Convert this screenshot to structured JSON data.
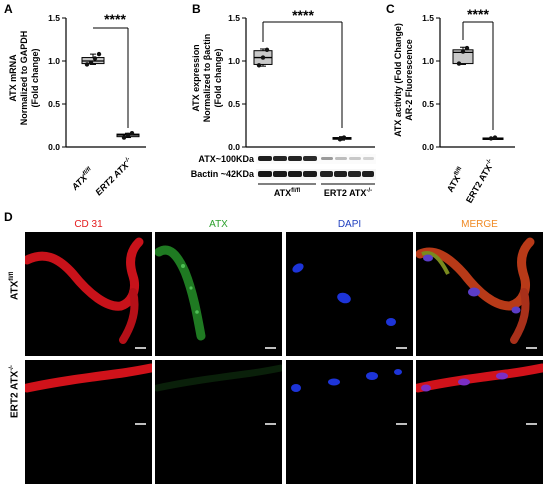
{
  "panels": {
    "A": {
      "letter": "A",
      "ylabel_line1": "ATX mRNA",
      "ylabel_line2": "Normalized to GAPDH",
      "ylabel_line3": "(Fold change)",
      "yticks": [
        "0.0",
        "0.5",
        "1.0",
        "1.5"
      ],
      "group1_main": "ATX",
      "group1_sup": "fl/fl",
      "group2_main": "ERT2 ATX",
      "group2_sup": "-/-",
      "significance": "****"
    },
    "B": {
      "letter": "B",
      "ylabel_line1": "ATX expression",
      "ylabel_line2": "Normalized to βactin",
      "ylabel_line3": "(Fold change)",
      "yticks": [
        "0.0",
        "0.5",
        "1.0",
        "1.5"
      ],
      "significance": "****",
      "blot_atx": "ATX~100KDa",
      "blot_bactin": "Bactin ~42KDa",
      "group1_main": "ATX",
      "group1_sup": "fl/fl",
      "group2_main": "ERT2 ATX",
      "group2_sup": "-/-"
    },
    "C": {
      "letter": "C",
      "ylabel_line1": "ATX activity (Fold Change)",
      "ylabel_line2": "AR-2 Fluorescence",
      "yticks": [
        "0.0",
        "0.5",
        "1.0",
        "1.5"
      ],
      "group1_main": "ATX",
      "group1_sup": "fl/fl",
      "group2_main": "ERT2 ATX",
      "group2_sup": "-/-",
      "significance": "****"
    },
    "D": {
      "letter": "D",
      "channels": [
        "CD 31",
        "ATX",
        "DAPI",
        "MERGE"
      ],
      "channel_colors": [
        "#e41a1c",
        "#2ca02c",
        "#1f3fbf",
        "#f08a24"
      ],
      "row1_main": "ATX",
      "row1_sup": "fl/fl",
      "row2_main": "ERT2 ATX",
      "row2_sup": "-/-"
    }
  },
  "chart_data": [
    {
      "type": "box",
      "panel": "A",
      "categories": [
        "ATX fl/fl",
        "ERT2 ATX -/-"
      ],
      "ylim": [
        0,
        1.5
      ],
      "boxes": [
        {
          "min": 0.96,
          "q1": 0.97,
          "median": 1.0,
          "q3": 1.04,
          "max": 1.08,
          "points": [
            0.96,
            0.98,
            1.03,
            1.08
          ]
        },
        {
          "min": 0.11,
          "q1": 0.12,
          "median": 0.14,
          "q3": 0.15,
          "max": 0.16,
          "points": [
            0.11,
            0.14,
            0.16
          ]
        }
      ]
    },
    {
      "type": "box",
      "panel": "B",
      "categories": [
        "ATX fl/fl",
        "ERT2 ATX -/-"
      ],
      "ylim": [
        0,
        1.5
      ],
      "boxes": [
        {
          "min": 0.94,
          "q1": 0.96,
          "median": 1.04,
          "q3": 1.12,
          "max": 1.14,
          "points": [
            0.95,
            1.04,
            1.13
          ]
        },
        {
          "min": 0.08,
          "q1": 0.09,
          "median": 0.1,
          "q3": 0.11,
          "max": 0.12,
          "points": [
            0.09,
            0.11
          ]
        }
      ]
    },
    {
      "type": "box",
      "panel": "C",
      "categories": [
        "ATX fl/fl",
        "ERT2 ATX -/-"
      ],
      "ylim": [
        0,
        1.5
      ],
      "boxes": [
        {
          "min": 0.96,
          "q1": 0.97,
          "median": 1.1,
          "q3": 1.13,
          "max": 1.16,
          "points": [
            0.97,
            1.11,
            1.15
          ]
        },
        {
          "min": 0.09,
          "q1": 0.095,
          "median": 0.1,
          "q3": 0.105,
          "max": 0.11,
          "points": [
            0.1,
            0.11
          ]
        }
      ]
    }
  ]
}
